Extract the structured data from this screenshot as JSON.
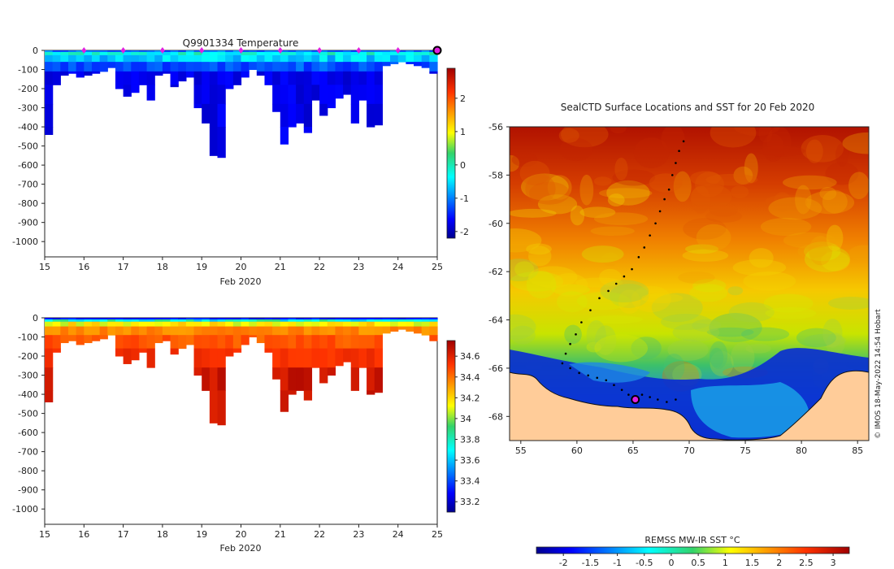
{
  "chart_data": [
    {
      "type": "heatmap",
      "id": "temperature-section",
      "title": "Q9901334  Temperature",
      "xlabel": "Feb 2020",
      "x_ticks": [
        "15",
        "16",
        "17",
        "18",
        "19",
        "20",
        "21",
        "22",
        "23",
        "24",
        "25"
      ],
      "xlim": [
        15,
        25
      ],
      "ylim": [
        -1080,
        0
      ],
      "y_ticks": [
        "0",
        "-100",
        "-200",
        "-300",
        "-400",
        "-500",
        "-600",
        "-700",
        "-800",
        "-900",
        "-1000"
      ],
      "colorbar": {
        "min": -2.2,
        "max": 2.9,
        "ticks": [
          "2",
          "1",
          "0",
          "-1",
          "-2"
        ],
        "tick_values": [
          2,
          1,
          0,
          -1,
          -2
        ],
        "palette": "jet"
      },
      "profile_markers_x": [
        16,
        17,
        18,
        19,
        20,
        21,
        22,
        23,
        24
      ],
      "current_marker_x": 25,
      "profiles": [
        {
          "t": 15.0,
          "d": 440
        },
        {
          "t": 15.2,
          "d": 180
        },
        {
          "t": 15.4,
          "d": 130
        },
        {
          "t": 15.6,
          "d": 120
        },
        {
          "t": 15.8,
          "d": 140
        },
        {
          "t": 16.0,
          "d": 130
        },
        {
          "t": 16.2,
          "d": 120
        },
        {
          "t": 16.4,
          "d": 110
        },
        {
          "t": 16.6,
          "d": 90
        },
        {
          "t": 16.8,
          "d": 200
        },
        {
          "t": 17.0,
          "d": 240
        },
        {
          "t": 17.2,
          "d": 220
        },
        {
          "t": 17.4,
          "d": 180
        },
        {
          "t": 17.6,
          "d": 260
        },
        {
          "t": 17.8,
          "d": 130
        },
        {
          "t": 18.0,
          "d": 120
        },
        {
          "t": 18.2,
          "d": 190
        },
        {
          "t": 18.4,
          "d": 160
        },
        {
          "t": 18.6,
          "d": 140
        },
        {
          "t": 18.8,
          "d": 300
        },
        {
          "t": 19.0,
          "d": 380
        },
        {
          "t": 19.2,
          "d": 550
        },
        {
          "t": 19.4,
          "d": 560
        },
        {
          "t": 19.6,
          "d": 200
        },
        {
          "t": 19.8,
          "d": 180
        },
        {
          "t": 20.0,
          "d": 140
        },
        {
          "t": 20.2,
          "d": 100
        },
        {
          "t": 20.4,
          "d": 130
        },
        {
          "t": 20.6,
          "d": 180
        },
        {
          "t": 20.8,
          "d": 320
        },
        {
          "t": 21.0,
          "d": 490
        },
        {
          "t": 21.2,
          "d": 400
        },
        {
          "t": 21.4,
          "d": 380
        },
        {
          "t": 21.6,
          "d": 430
        },
        {
          "t": 21.8,
          "d": 260
        },
        {
          "t": 22.0,
          "d": 340
        },
        {
          "t": 22.2,
          "d": 300
        },
        {
          "t": 22.4,
          "d": 250
        },
        {
          "t": 22.6,
          "d": 230
        },
        {
          "t": 22.8,
          "d": 380
        },
        {
          "t": 23.0,
          "d": 260
        },
        {
          "t": 23.2,
          "d": 400
        },
        {
          "t": 23.4,
          "d": 390
        },
        {
          "t": 23.6,
          "d": 80
        },
        {
          "t": 23.8,
          "d": 70
        },
        {
          "t": 24.0,
          "d": 60
        },
        {
          "t": 24.2,
          "d": 70
        },
        {
          "t": 24.4,
          "d": 80
        },
        {
          "t": 24.6,
          "d": 90
        },
        {
          "t": 24.8,
          "d": 120
        }
      ]
    },
    {
      "type": "heatmap",
      "id": "salinity-section",
      "title": "",
      "xlabel": "Feb 2020",
      "x_ticks": [
        "15",
        "16",
        "17",
        "18",
        "19",
        "20",
        "21",
        "22",
        "23",
        "24",
        "25"
      ],
      "xlim": [
        15,
        25
      ],
      "ylim": [
        -1080,
        0
      ],
      "y_ticks": [
        "0",
        "-100",
        "-200",
        "-300",
        "-400",
        "-500",
        "-600",
        "-700",
        "-800",
        "-900",
        "-1000"
      ],
      "colorbar": {
        "min": 33.1,
        "max": 34.75,
        "ticks": [
          "34.6",
          "34.4",
          "34.2",
          "34",
          "33.8",
          "33.6",
          "33.4",
          "33.2"
        ],
        "tick_values": [
          34.6,
          34.4,
          34.2,
          34.0,
          33.8,
          33.6,
          33.4,
          33.2
        ],
        "palette": "jet"
      },
      "profiles_same_as": "temperature-section"
    },
    {
      "type": "heatmap",
      "id": "sst-map",
      "title": "SealCTD Surface Locations and SST for 20 Feb 2020",
      "xlabel": "",
      "x_ticks": [
        "55",
        "60",
        "65",
        "70",
        "75",
        "80",
        "85"
      ],
      "xlim": [
        54,
        86
      ],
      "ylim": [
        -69,
        -56
      ],
      "y_ticks": [
        "-56",
        "-58",
        "-60",
        "-62",
        "-64",
        "-66",
        "-68"
      ],
      "colorbar": {
        "label": "REMSS MW-IR SST °C",
        "min": -2.5,
        "max": 3.3,
        "ticks": [
          "-2",
          "-1.5",
          "-1",
          "-0.5",
          "0",
          "0.5",
          "1",
          "1.5",
          "2",
          "2.5",
          "3"
        ],
        "tick_values": [
          -2,
          -1.5,
          -1,
          -0.5,
          0,
          0.5,
          1,
          1.5,
          2,
          2.5,
          3
        ],
        "palette": "jet"
      },
      "track_lonlat": [
        [
          69.5,
          -56.6
        ],
        [
          69.1,
          -57.0
        ],
        [
          68.8,
          -57.5
        ],
        [
          68.5,
          -58.0
        ],
        [
          68.2,
          -58.6
        ],
        [
          67.8,
          -59.0
        ],
        [
          67.4,
          -59.5
        ],
        [
          67.0,
          -60.0
        ],
        [
          66.5,
          -60.5
        ],
        [
          66.0,
          -61.0
        ],
        [
          65.5,
          -61.4
        ],
        [
          64.9,
          -61.9
        ],
        [
          64.2,
          -62.2
        ],
        [
          63.5,
          -62.5
        ],
        [
          62.8,
          -62.8
        ],
        [
          62.0,
          -63.1
        ],
        [
          61.2,
          -63.6
        ],
        [
          60.4,
          -64.1
        ],
        [
          59.9,
          -64.6
        ],
        [
          59.4,
          -65.0
        ],
        [
          59.0,
          -65.4
        ],
        [
          58.7,
          -65.8
        ],
        [
          59.4,
          -66.0
        ],
        [
          60.2,
          -66.2
        ],
        [
          61.0,
          -66.3
        ],
        [
          61.8,
          -66.4
        ],
        [
          62.6,
          -66.5
        ],
        [
          63.3,
          -66.7
        ],
        [
          64.0,
          -66.9
        ],
        [
          64.6,
          -67.1
        ],
        [
          65.2,
          -67.2
        ],
        [
          65.8,
          -67.1
        ],
        [
          66.5,
          -67.2
        ],
        [
          67.2,
          -67.3
        ],
        [
          68.0,
          -67.4
        ],
        [
          68.8,
          -67.3
        ]
      ],
      "current_location_lonlat": [
        65.2,
        -67.3
      ],
      "credit": "© IMOS 18-May-2022 14:54 Hobart"
    }
  ]
}
